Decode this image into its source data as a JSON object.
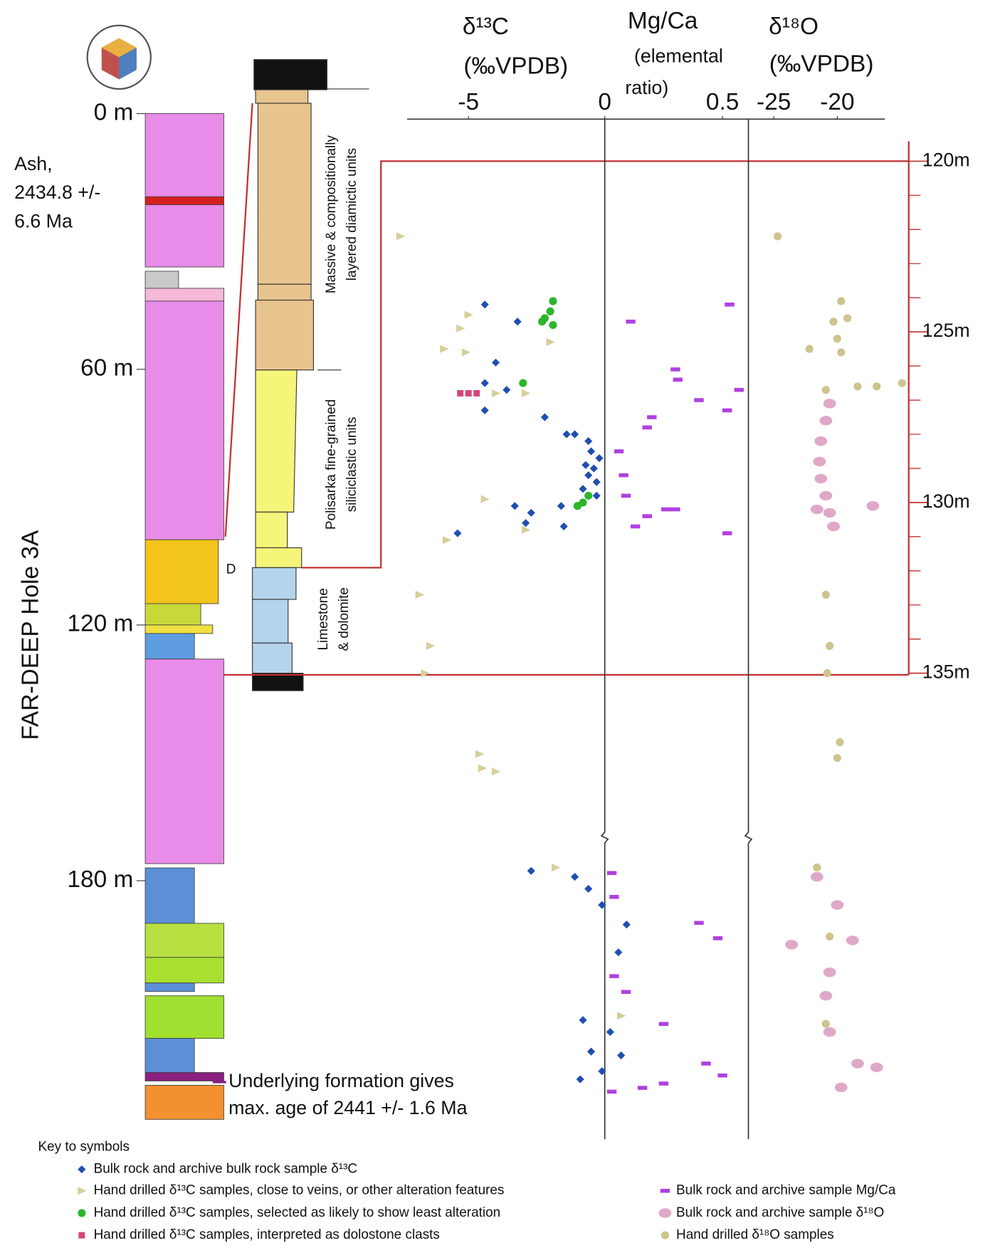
{
  "chart_data": [
    {
      "type": "column",
      "title": "FAR-DEEP Hole 3A",
      "ylim": [
        0,
        236
      ],
      "yticks": [
        {
          "value": 0,
          "label": "0 m"
        },
        {
          "value": 60,
          "label": "60 m"
        },
        {
          "value": 120,
          "label": "120 m"
        },
        {
          "value": 180,
          "label": "180 m"
        }
      ],
      "layers": [
        {
          "top": 0,
          "bottom": 36,
          "color": "#e98be9"
        },
        {
          "top": 19.5,
          "bottom": 21.4,
          "color": "#d42020"
        },
        {
          "top": 37,
          "bottom": 41,
          "color": "#c9c9c9"
        },
        {
          "top": 41,
          "bottom": 44,
          "color": "#f5b8d8"
        },
        {
          "top": 44,
          "bottom": 100,
          "color": "#e98be9"
        },
        {
          "top": 100,
          "bottom": 115,
          "color": "#f3c41a"
        },
        {
          "top": 115,
          "bottom": 120,
          "color": "#c8d83a"
        },
        {
          "top": 120,
          "bottom": 122,
          "color": "#f0e040"
        },
        {
          "top": 122,
          "bottom": 128,
          "color": "#5d9de0"
        },
        {
          "top": 128,
          "bottom": 176,
          "color": "#e98be9"
        },
        {
          "top": 177,
          "bottom": 190,
          "color": "#5d8fd8"
        },
        {
          "top": 190,
          "bottom": 198,
          "color": "#b8e040"
        },
        {
          "top": 198,
          "bottom": 204,
          "color": "#a8e030"
        },
        {
          "top": 204,
          "bottom": 206,
          "color": "#5d8fd8"
        },
        {
          "top": 207,
          "bottom": 217,
          "color": "#a0e030"
        },
        {
          "top": 217,
          "bottom": 225,
          "color": "#5d8fd8"
        },
        {
          "top": 225,
          "bottom": 227,
          "color": "#8a2080"
        },
        {
          "top": 228,
          "bottom": 236,
          "color": "#f39030"
        }
      ],
      "annotations": [
        [
          "Ash,",
          "2434.8 +/-",
          "6.6 Ma"
        ],
        [
          "Underlying formation gives",
          "max. age of 2441 +/- 1.6 Ma"
        ],
        [
          "D"
        ]
      ]
    },
    {
      "type": "section",
      "labels": [
        [
          "Massive & compositionally",
          "layered diamictic units"
        ],
        [
          "Polisarka fine-grained",
          "siliciclastic units"
        ],
        [
          "Limestone",
          "& dolomite"
        ]
      ]
    },
    {
      "type": "scatter",
      "ylim": [
        120,
        135
      ],
      "yticks": [
        {
          "value": 120,
          "label": "120m"
        },
        {
          "value": 125,
          "label": "125m"
        },
        {
          "value": 130,
          "label": "130m"
        },
        {
          "value": 135,
          "label": "135m"
        }
      ],
      "minor_yticks": [
        121,
        122,
        123,
        124,
        126,
        127,
        128,
        129,
        131,
        132,
        133,
        134
      ],
      "x_axes": [
        {
          "title": "δ¹³C",
          "units": [
            "(‰VPDB)"
          ],
          "xlim": [
            -7.25,
            0
          ],
          "xticks": [
            -5,
            0
          ]
        },
        {
          "title": "Mg/Ca",
          "units": [
            "(elemental",
            "ratio)"
          ],
          "xlim": [
            0,
            0.6
          ],
          "xticks": [
            0.5
          ]
        },
        {
          "title": "δ¹⁸O",
          "units": [
            "(‰VPDB)"
          ],
          "xlim": [
            -27,
            -16.25
          ],
          "xticks": [
            -25,
            -20
          ]
        }
      ],
      "legend_title": "Key to symbols",
      "series": [
        {
          "name": "Bulk rock and archive bulk rock sample δ¹³C",
          "color": "#1f4fb0",
          "marker": "diamond",
          "x_axis": 0,
          "x": [
            -4.4,
            -3.2,
            -4.0,
            -4.4,
            -3.6,
            -4.4,
            -2.2,
            -1.4,
            -1.1,
            -0.6,
            -0.5,
            -0.2,
            -0.7,
            -0.4,
            -0.6,
            -0.3,
            -0.8,
            -0.3,
            -3.3,
            -2.7,
            -2.9,
            -1.5,
            -5.4,
            -1.6
          ],
          "y": [
            124.2,
            124.7,
            125.9,
            126.5,
            126.7,
            127.3,
            127.5,
            128.0,
            128.0,
            128.2,
            128.5,
            128.7,
            128.9,
            129.0,
            129.2,
            129.4,
            129.6,
            129.8,
            130.1,
            130.3,
            130.6,
            130.7,
            130.9,
            130.1
          ]
        },
        {
          "name": "Hand drilled δ¹³C samples, close to veins, or other alteration features",
          "color": "#d6cf9b",
          "marker": "triangle",
          "x_axis": 0,
          "x": [
            -7.5,
            -5.0,
            -5.3,
            -5.1,
            -5.9,
            -2.0,
            -4.0,
            -2.9,
            -4.4,
            -2.9,
            -5.8,
            -6.8,
            -6.4,
            -6.6
          ],
          "y": [
            122.2,
            124.5,
            124.9,
            125.6,
            125.5,
            125.3,
            126.8,
            126.8,
            129.9,
            130.8,
            131.1,
            132.7,
            134.2,
            135.0
          ]
        },
        {
          "name": "Hand drilled δ¹³C samples, selected as likely to show least alteration",
          "color": "#2db52d",
          "marker": "circle",
          "x_axis": 0,
          "x": [
            -1.9,
            -2.0,
            -2.2,
            -1.9,
            -2.3,
            -3.0,
            -0.6,
            -0.8,
            -1.0
          ],
          "y": [
            124.1,
            124.4,
            124.6,
            124.8,
            124.7,
            126.5,
            129.8,
            130.0,
            130.1
          ]
        },
        {
          "name": "Hand drilled δ¹³C samples, interpreted as dolostone clasts",
          "color": "#d6457a",
          "marker": "square",
          "x_axis": 0,
          "x": [
            -5.3,
            -5.0,
            -4.7
          ],
          "y": [
            126.8,
            126.8,
            126.8
          ]
        },
        {
          "name": "Bulk rock and archive sample Mg/Ca",
          "color": "#b040e0",
          "marker": "dash",
          "x_axis": 1,
          "x": [
            0.11,
            0.3,
            0.31,
            0.4,
            0.52,
            0.57,
            0.53,
            0.2,
            0.18,
            0.06,
            0.08,
            0.09,
            0.26,
            0.18,
            0.13,
            0.52,
            0.3
          ],
          "y": [
            124.7,
            126.1,
            126.4,
            127.0,
            127.3,
            126.7,
            124.2,
            127.5,
            127.8,
            128.5,
            129.2,
            129.8,
            130.2,
            130.4,
            130.7,
            130.9,
            130.2
          ]
        },
        {
          "name": "Bulk rock and archive sample δ¹⁸O",
          "color": "#e0a8c8",
          "marker": "ellipse",
          "x_axis": 2,
          "x": [
            -20.6,
            -20.9,
            -21.3,
            -21.4,
            -21.3,
            -20.9,
            -20.6,
            -20.3,
            -17.2,
            -21.6
          ],
          "y": [
            127.1,
            127.6,
            128.2,
            128.8,
            129.3,
            129.8,
            130.3,
            130.7,
            130.1,
            130.2
          ]
        },
        {
          "name": "Hand drilled δ¹⁸O samples",
          "color": "#cdc48e",
          "marker": "circle",
          "x_axis": 2,
          "x": [
            -24.7,
            -19.7,
            -20.3,
            -19.2,
            -20.0,
            -22.2,
            -19.7,
            -20.9,
            -18.4,
            -16.9,
            -14.9,
            -20.9,
            -20.6,
            -20.8
          ],
          "y": [
            122.2,
            124.1,
            124.7,
            124.6,
            125.2,
            125.5,
            125.6,
            126.7,
            126.6,
            126.6,
            126.5,
            132.7,
            134.2,
            135.0
          ]
        }
      ]
    },
    {
      "type": "scatter-lower",
      "series": [
        {
          "color": "#1f4fb0",
          "marker": "diamond",
          "x_axis": 0,
          "x": [
            -2.7,
            -1.1,
            -0.6,
            -0.1,
            0.8,
            0.5,
            -0.8,
            0.2,
            -0.5,
            0.6,
            -0.9,
            -0.1
          ],
          "y": [
            177.7,
            179.1,
            181.9,
            185.7,
            190.3,
            196.8,
            212.7,
            215.5,
            220.1,
            221.0,
            226.6,
            224.7
          ]
        },
        {
          "color": "#d6cf9b",
          "marker": "triangle",
          "x_axis": 0,
          "x": [
            -4.6,
            -4.5,
            -4.0,
            -1.8,
            0.6
          ],
          "y": [
            150.3,
            153.6,
            154.4,
            176.9,
            211.7
          ]
        },
        {
          "color": "#b040e0",
          "marker": "dash",
          "x_axis": 1,
          "x": [
            0.03,
            0.04,
            0.4,
            0.48,
            0.04,
            0.09,
            0.25,
            0.43,
            0.5,
            0.25,
            0.03,
            0.16
          ],
          "y": [
            178.2,
            183.8,
            189.9,
            193.5,
            202.4,
            206.1,
            213.6,
            222.9,
            225.7,
            227.6,
            229.5,
            228.6
          ]
        },
        {
          "color": "#e0a8c8",
          "marker": "ellipse",
          "x_axis": 2,
          "x": [
            -21.6,
            -20.0,
            -23.6,
            -18.8,
            -20.6,
            -20.9,
            -20.6,
            -18.4,
            -16.9,
            -19.7
          ],
          "y": [
            179.1,
            185.7,
            195.0,
            194.0,
            201.5,
            207.0,
            215.5,
            222.9,
            223.8,
            228.5
          ]
        },
        {
          "color": "#cdc48e",
          "marker": "circle",
          "x_axis": 2,
          "x": [
            -19.8,
            -20.0,
            -21.6,
            -20.6,
            -20.9
          ],
          "y": [
            147.5,
            151.2,
            176.9,
            193.1,
            213.6
          ]
        }
      ]
    }
  ]
}
